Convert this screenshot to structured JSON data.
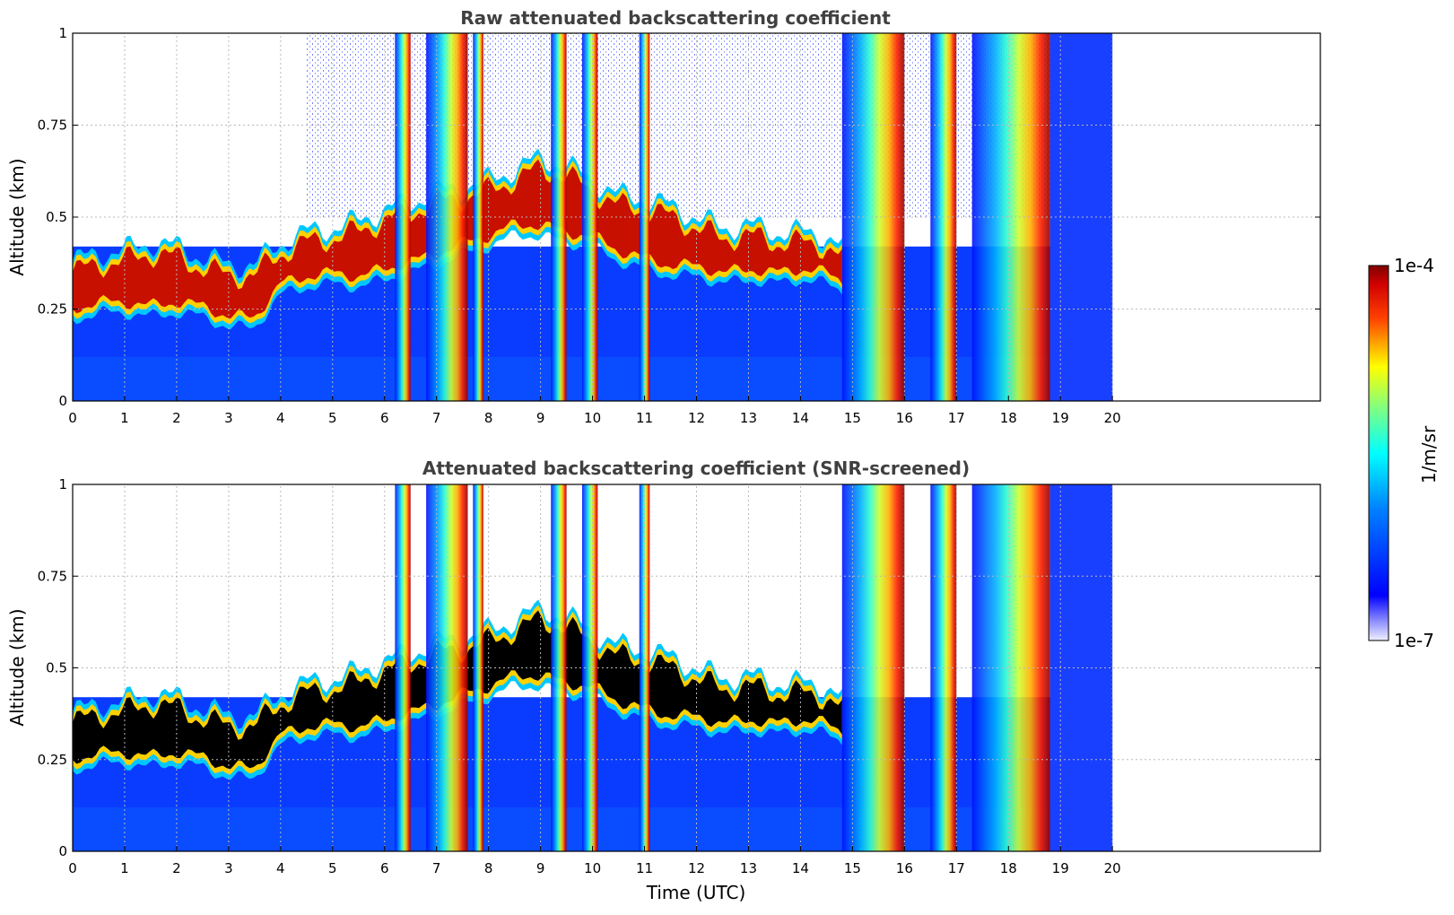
{
  "chart_data": [
    {
      "type": "heatmap",
      "title": "Raw attenuated backscattering coefficient",
      "xlabel": "",
      "ylabel": "Altitude (km)",
      "xlim": [
        0,
        24
      ],
      "ylim": [
        0,
        1
      ],
      "data_extent_x": [
        0,
        20
      ],
      "xticks": [
        0,
        1,
        2,
        3,
        4,
        5,
        6,
        7,
        8,
        9,
        10,
        11,
        12,
        13,
        14,
        15,
        16,
        17,
        18,
        19,
        20
      ],
      "yticks": [
        0,
        0.25,
        0.5,
        0.75,
        1
      ],
      "ytick_labels": [
        "0",
        "0.25",
        "0.5",
        "0.75",
        "1"
      ],
      "grid": true,
      "colormap": "jet",
      "layer": {
        "x": [
          0,
          0.5,
          1,
          1.5,
          2,
          2.5,
          3,
          3.5,
          4,
          4.5,
          5,
          5.5,
          6,
          6.5,
          7,
          7.5,
          8,
          8.5,
          9,
          9.5,
          10,
          10.5,
          11,
          11.5,
          12,
          12.5,
          13,
          13.5,
          14,
          14.5,
          14.8
        ],
        "base_km": [
          0.22,
          0.24,
          0.24,
          0.23,
          0.24,
          0.23,
          0.2,
          0.2,
          0.29,
          0.31,
          0.32,
          0.31,
          0.33,
          0.35,
          0.37,
          0.4,
          0.42,
          0.45,
          0.45,
          0.43,
          0.42,
          0.38,
          0.36,
          0.34,
          0.34,
          0.32,
          0.33,
          0.32,
          0.33,
          0.32,
          0.3
        ],
        "top_km": [
          0.38,
          0.4,
          0.41,
          0.43,
          0.42,
          0.39,
          0.37,
          0.37,
          0.43,
          0.46,
          0.47,
          0.49,
          0.52,
          0.54,
          0.57,
          0.58,
          0.6,
          0.63,
          0.66,
          0.64,
          0.6,
          0.56,
          0.55,
          0.53,
          0.5,
          0.47,
          0.48,
          0.46,
          0.46,
          0.45,
          0.42
        ]
      },
      "precip_bands_utc": [
        [
          6.2,
          6.5
        ],
        [
          6.8,
          7.6
        ],
        [
          7.7,
          7.9
        ],
        [
          9.2,
          9.5
        ],
        [
          9.8,
          10.1
        ],
        [
          10.9,
          11.1
        ],
        [
          14.8,
          16.0
        ],
        [
          16.5,
          17.0
        ],
        [
          17.3,
          18.8
        ]
      ]
    },
    {
      "type": "heatmap",
      "title": "Attenuated backscattering coefficient (SNR-screened)",
      "xlabel": "Time (UTC)",
      "ylabel": "Altitude (km)",
      "xlim": [
        0,
        24
      ],
      "ylim": [
        0,
        1
      ],
      "data_extent_x": [
        0,
        20
      ],
      "xticks": [
        0,
        1,
        2,
        3,
        4,
        5,
        6,
        7,
        8,
        9,
        10,
        11,
        12,
        13,
        14,
        15,
        16,
        17,
        18,
        19,
        20
      ],
      "yticks": [
        0,
        0.25,
        0.5,
        0.75,
        1
      ],
      "ytick_labels": [
        "0",
        "0.25",
        "0.5",
        "0.75",
        "1"
      ],
      "grid": true,
      "colormap": "jet",
      "saturated_color": "#000000"
    }
  ],
  "colorbar": {
    "label": "1/m/sr",
    "min_label": "1e-7",
    "max_label": "1e-4",
    "scale": "log",
    "range": [
      1e-07,
      0.0001
    ],
    "colormap": "jet"
  },
  "colors": {
    "jet_low": "#eaeaff",
    "jet_blue": "#0000ff",
    "jet_cyan": "#00ffff",
    "jet_yellow": "#ffff00",
    "jet_red": "#ff0000",
    "jet_high": "#800000"
  }
}
